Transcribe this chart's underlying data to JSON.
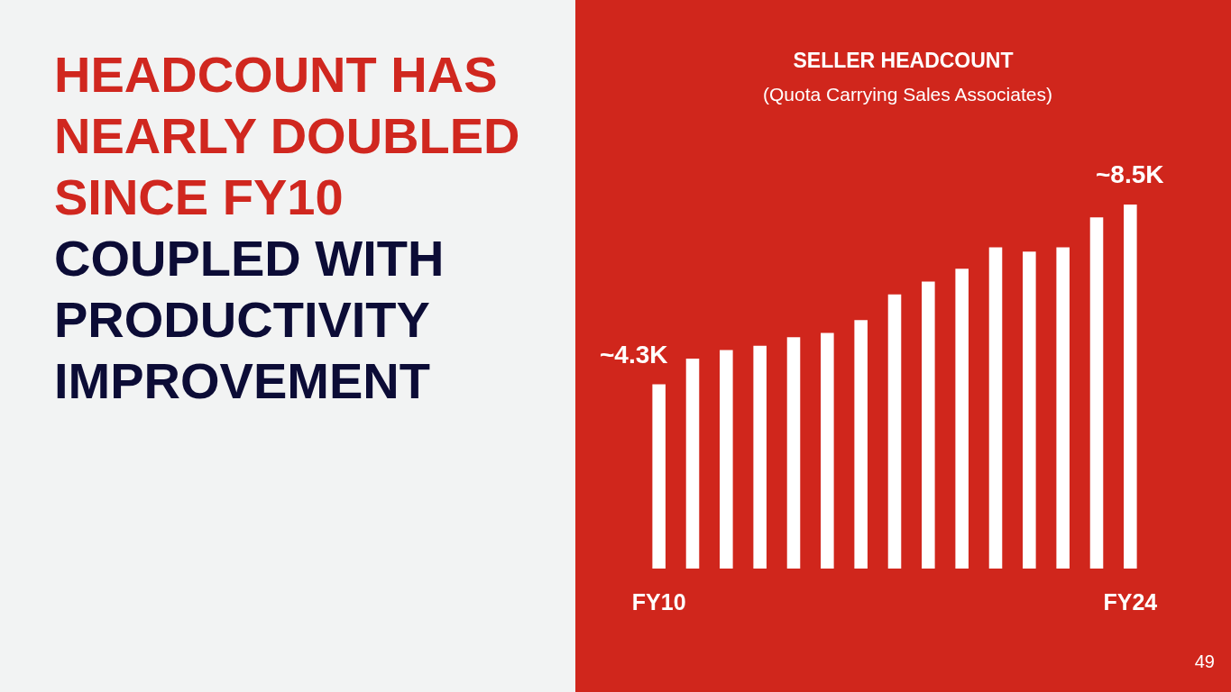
{
  "chart_data": {
    "type": "bar",
    "title": "SELLER HEADCOUNT",
    "subtitle": "(Quota Carrying Sales Associates)",
    "categories": [
      "FY10",
      null,
      null,
      null,
      null,
      null,
      null,
      null,
      null,
      null,
      null,
      null,
      null,
      null,
      "FY24"
    ],
    "values": [
      4.3,
      4.9,
      5.1,
      5.2,
      5.4,
      5.5,
      5.8,
      6.4,
      6.7,
      7.0,
      7.5,
      7.4,
      7.5,
      8.2,
      8.5
    ],
    "value_labels": [
      "~4.3K",
      null,
      null,
      null,
      null,
      null,
      null,
      null,
      null,
      null,
      null,
      null,
      null,
      null,
      "~8.5K"
    ],
    "color": "#ffffff",
    "tick_labels": "x",
    "annotations": [
      "HEADCOUNT HAS NEARLY DOUBLED SINCE FY10",
      "COUPLED WITH PRODUCTIVITY IMPROVEMENT",
      "49"
    ]
  }
}
